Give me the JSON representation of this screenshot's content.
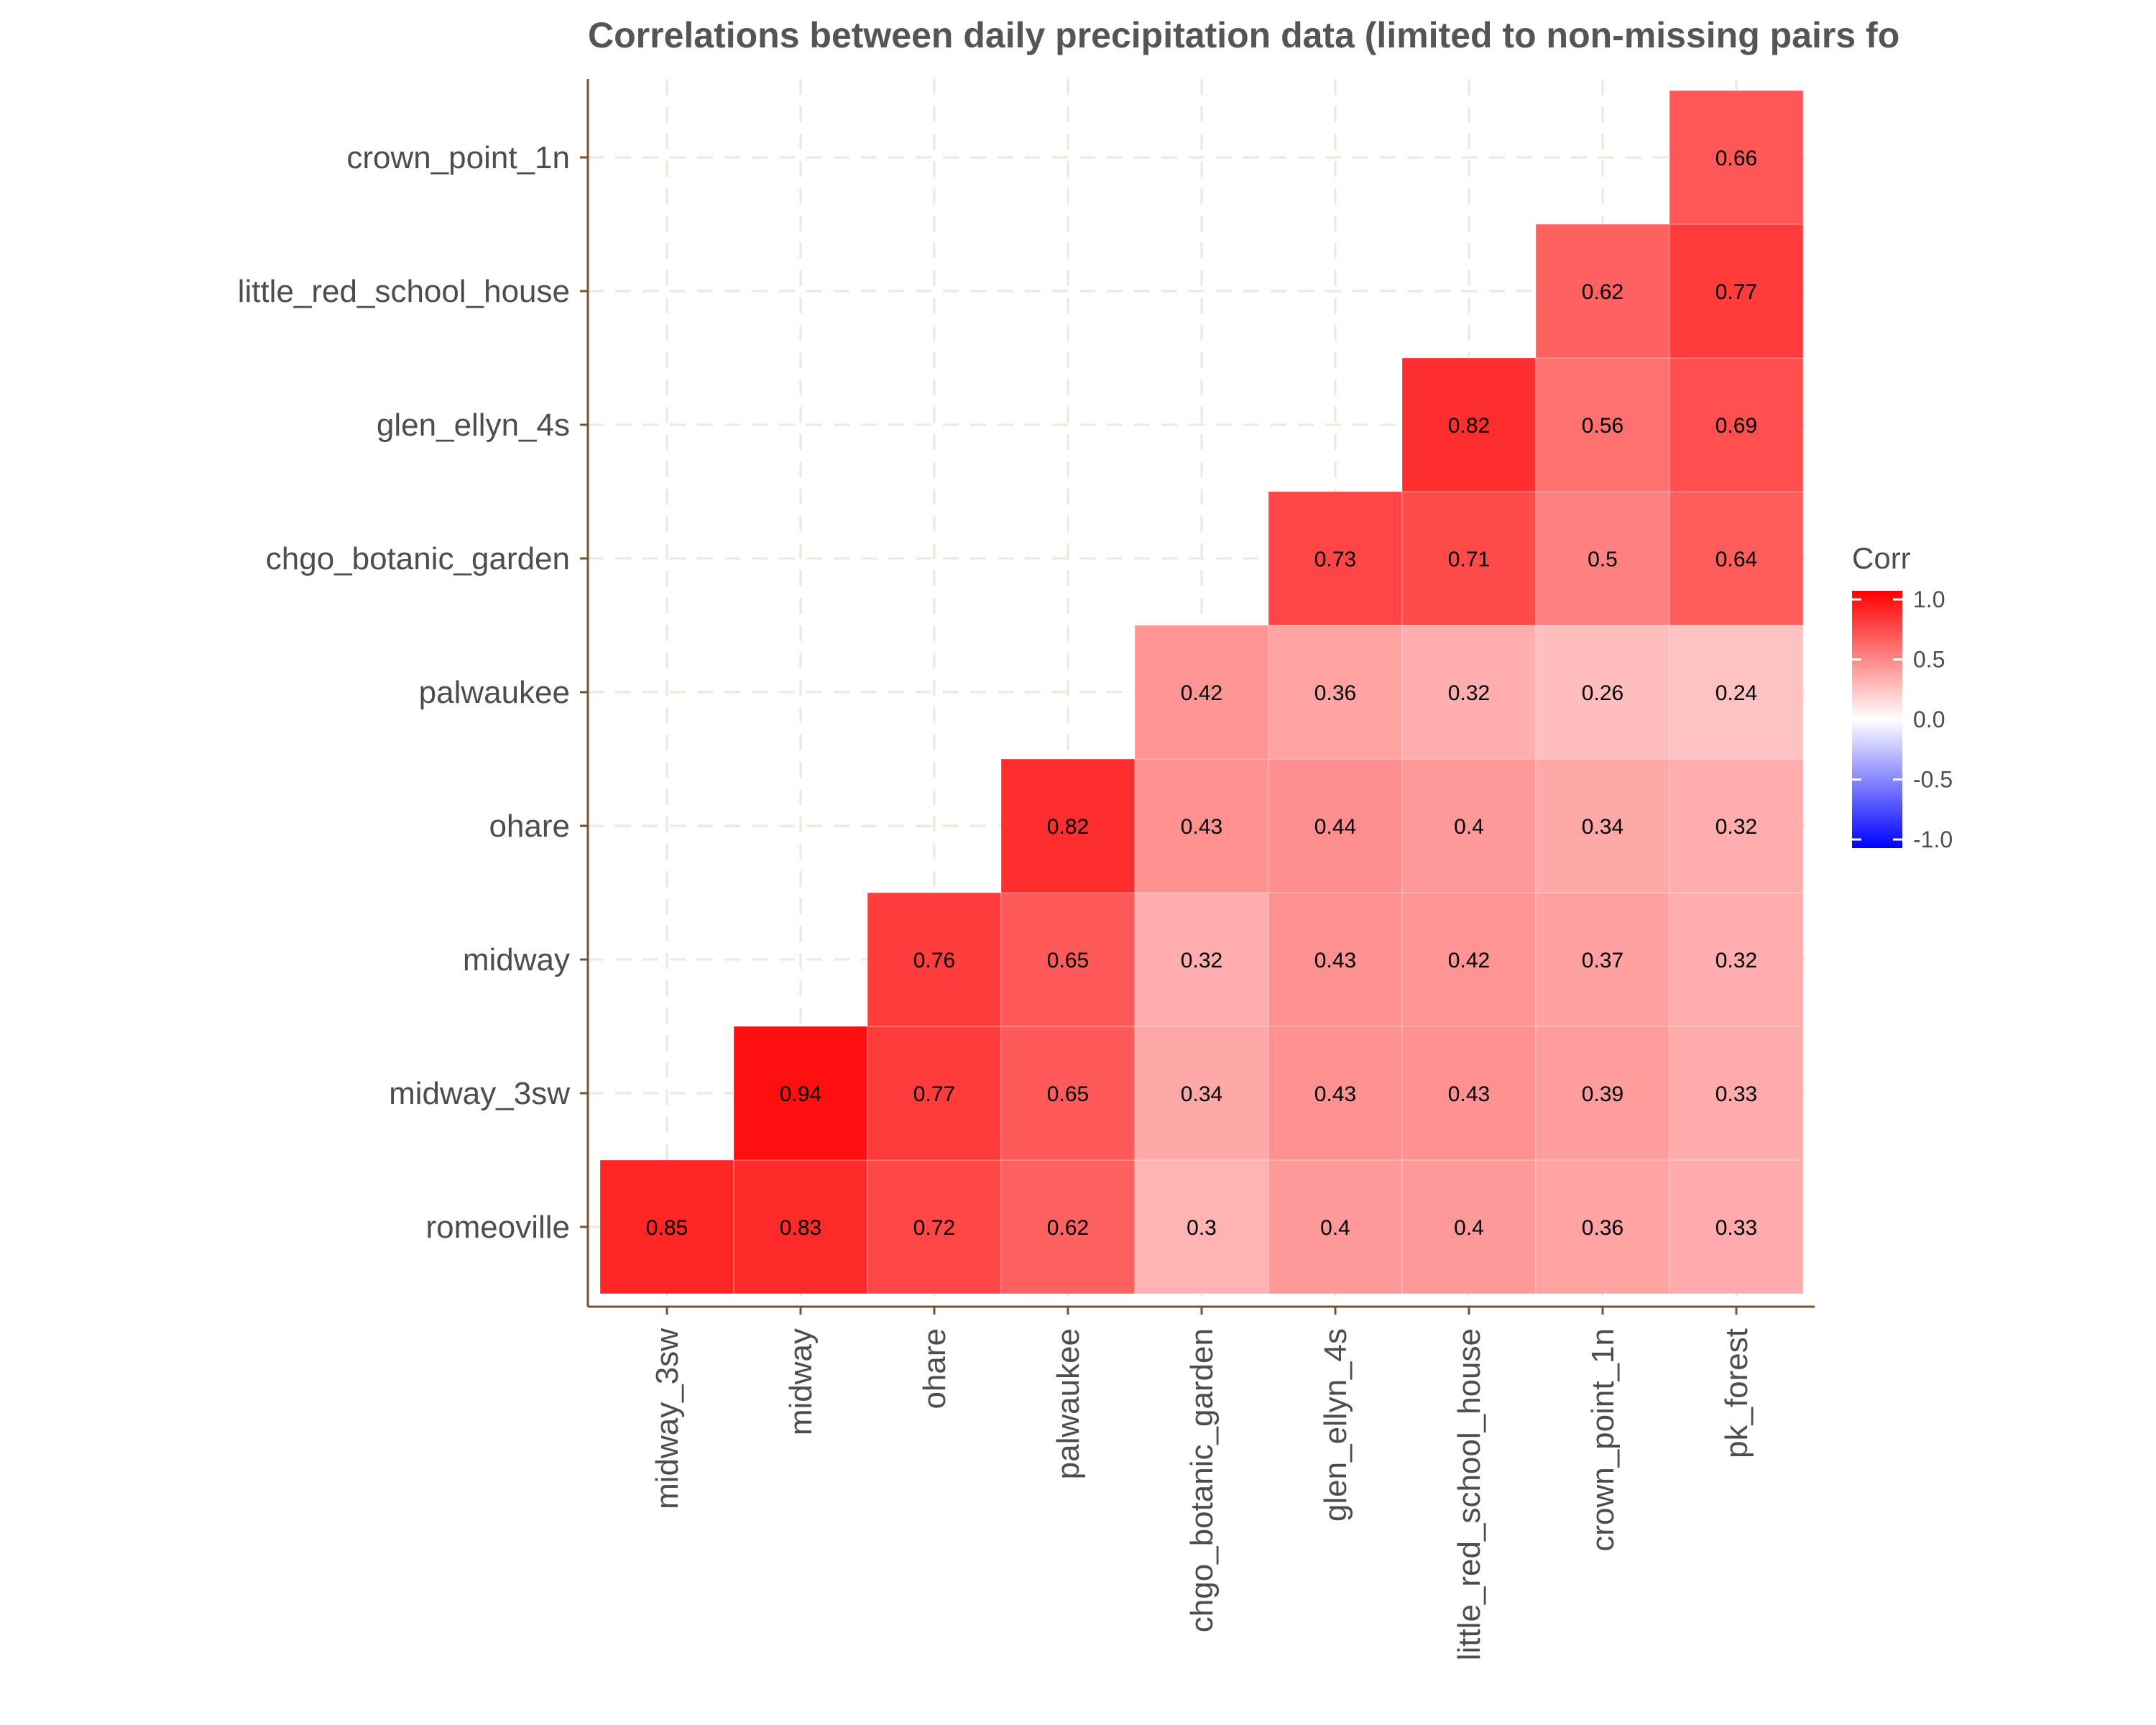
{
  "chart_data": {
    "type": "heatmap",
    "title": "Correlations between daily precipitation data (limited to non-missing pairs fo",
    "x_categories": [
      "midway_3sw",
      "midway",
      "ohare",
      "palwaukee",
      "chgo_botanic_garden",
      "glen_ellyn_4s",
      "little_red_school_house",
      "crown_point_1n",
      "pk_forest"
    ],
    "y_categories": [
      "romeoville",
      "midway_3sw",
      "midway",
      "ohare",
      "palwaukee",
      "chgo_botanic_garden",
      "glen_ellyn_4s",
      "little_red_school_house",
      "crown_point_1n"
    ],
    "rows": [
      {
        "y": "romeoville",
        "values": [
          0.85,
          0.83,
          0.72,
          0.62,
          0.3,
          0.4,
          0.4,
          0.36,
          0.33
        ]
      },
      {
        "y": "midway_3sw",
        "values": [
          null,
          0.94,
          0.77,
          0.65,
          0.34,
          0.43,
          0.43,
          0.39,
          0.33
        ]
      },
      {
        "y": "midway",
        "values": [
          null,
          null,
          0.76,
          0.65,
          0.32,
          0.43,
          0.42,
          0.37,
          0.32
        ]
      },
      {
        "y": "ohare",
        "values": [
          null,
          null,
          null,
          0.82,
          0.43,
          0.44,
          0.4,
          0.34,
          0.32
        ]
      },
      {
        "y": "palwaukee",
        "values": [
          null,
          null,
          null,
          null,
          0.42,
          0.36,
          0.32,
          0.26,
          0.24
        ]
      },
      {
        "y": "chgo_botanic_garden",
        "values": [
          null,
          null,
          null,
          null,
          null,
          0.73,
          0.71,
          0.5,
          0.64
        ]
      },
      {
        "y": "glen_ellyn_4s",
        "values": [
          null,
          null,
          null,
          null,
          null,
          null,
          0.82,
          0.56,
          0.69
        ]
      },
      {
        "y": "little_red_school_house",
        "values": [
          null,
          null,
          null,
          null,
          null,
          null,
          null,
          0.62,
          0.77
        ]
      },
      {
        "y": "crown_point_1n",
        "values": [
          null,
          null,
          null,
          null,
          null,
          null,
          null,
          null,
          0.66
        ]
      }
    ],
    "color_scale": {
      "low": "#0000ff",
      "mid": "#ffffff",
      "high": "#ff0000",
      "range": [
        -1.0,
        1.0
      ]
    },
    "legend": {
      "title": "Corr",
      "labels": [
        "1.0",
        "0.5",
        "0.0",
        "-0.5",
        "-1.0"
      ],
      "values": [
        1.0,
        0.5,
        0.0,
        -0.5,
        -1.0
      ],
      "position": "right"
    },
    "grid": true,
    "grid_color": "#f0e6da",
    "axis_color": "#7a5230"
  }
}
